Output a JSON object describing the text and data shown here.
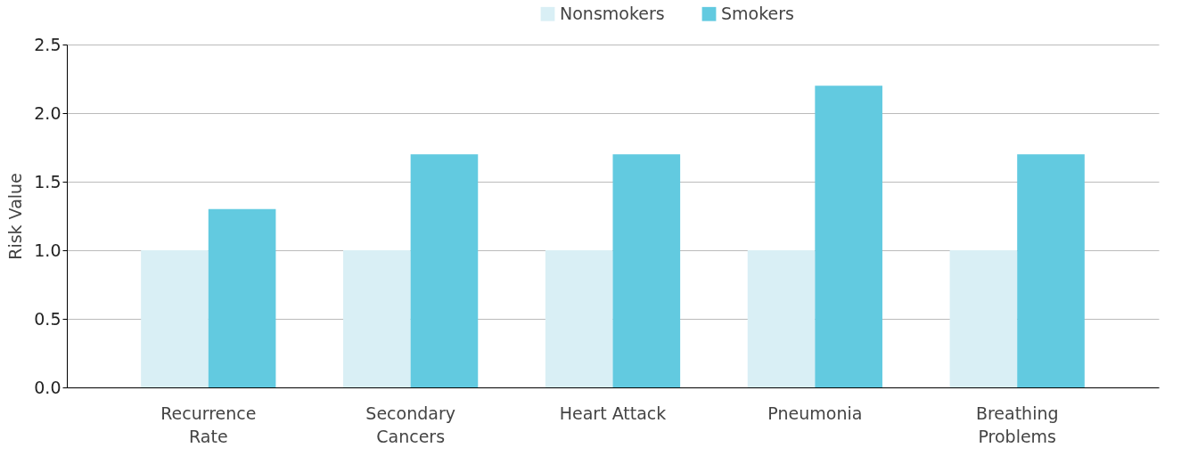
{
  "chart_data": {
    "type": "bar",
    "ylabel": "Risk Value",
    "categories": [
      "Recurrence Rate",
      "Secondary Cancers",
      "Heart Attack",
      "Pneumonia",
      "Breathing Problems"
    ],
    "series": [
      {
        "name": "Nonsmokers",
        "color": "#d9eff5",
        "values": [
          1.0,
          1.0,
          1.0,
          1.0,
          1.0
        ]
      },
      {
        "name": "Smokers",
        "color": "#62cae0",
        "values": [
          1.3,
          1.7,
          1.7,
          2.2,
          1.7
        ]
      }
    ],
    "ylim": [
      0,
      2.5
    ],
    "yticks": [
      {
        "value": 0,
        "label": "0.0"
      },
      0.5,
      {
        "value": 1,
        "label": "1.0"
      },
      1.5,
      {
        "value": 2,
        "label": "2.0"
      },
      2.5
    ],
    "grid": "y",
    "legend": "top"
  }
}
